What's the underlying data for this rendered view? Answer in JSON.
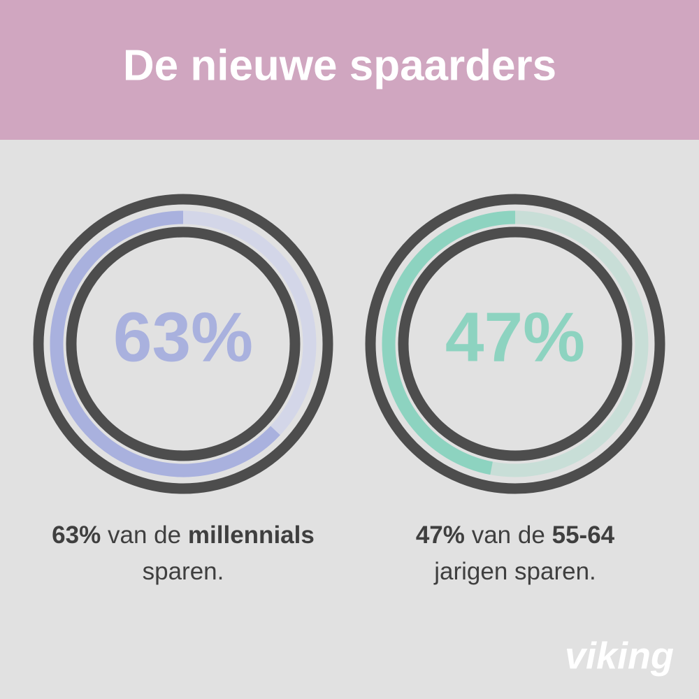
{
  "title": "De nieuwe spaarders",
  "chart_data": [
    {
      "type": "donut",
      "value": 63,
      "value_label": "63%",
      "color": "#a9b1de",
      "track_color": "#d3d6e8",
      "caption": [
        [
          {
            "text": "63%",
            "bold": true
          },
          {
            "text": "van de",
            "bold": false
          },
          {
            "text": "millennials",
            "bold": true
          }
        ],
        [
          {
            "text": "sparen.",
            "bold": false
          }
        ]
      ]
    },
    {
      "type": "donut",
      "value": 47,
      "value_label": "47%",
      "color": "#8dd3c0",
      "track_color": "#c8ded7",
      "caption": [
        [
          {
            "text": "47%",
            "bold": true
          },
          {
            "text": "van de",
            "bold": false
          },
          {
            "text": "55-64",
            "bold": true
          }
        ],
        [
          {
            "text": "jarigen sparen.",
            "bold": false
          }
        ]
      ]
    }
  ],
  "logo": "viking"
}
